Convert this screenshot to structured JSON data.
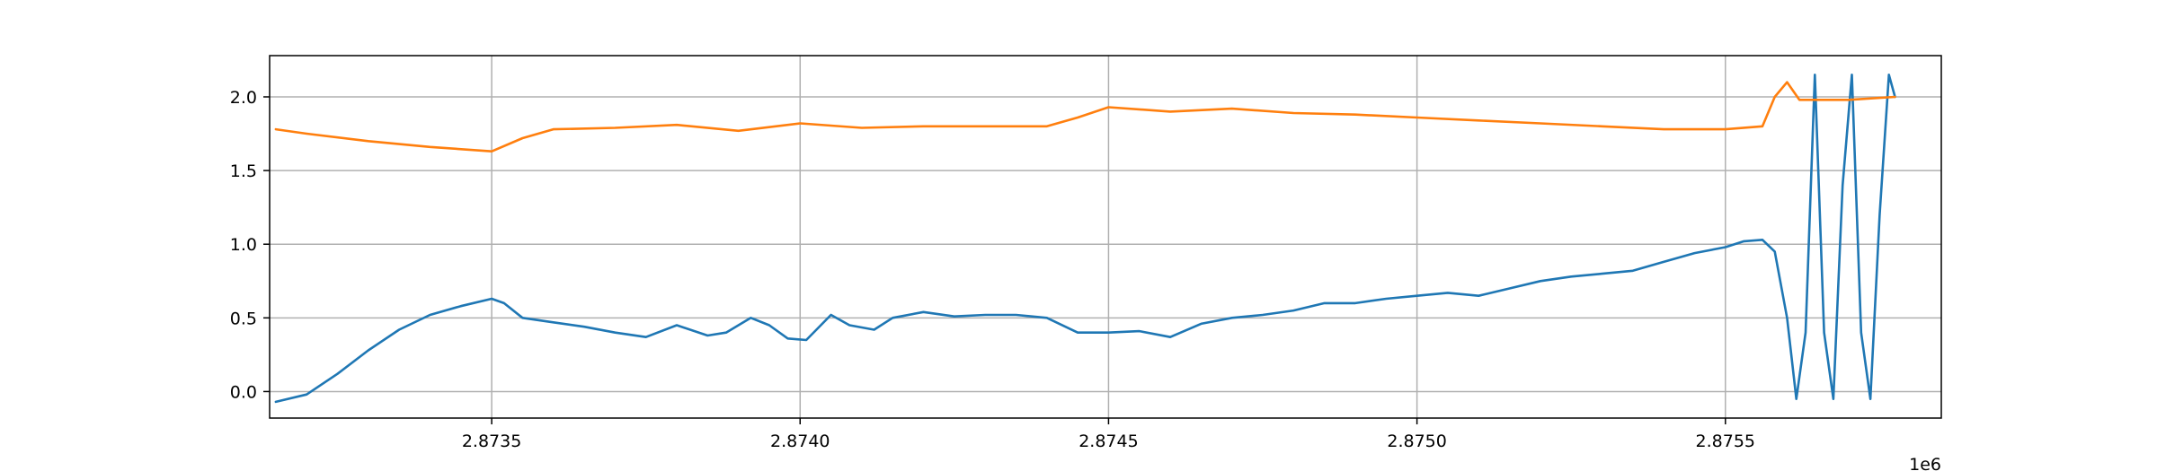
{
  "chart_data": {
    "type": "line",
    "title": "",
    "xlabel": "",
    "ylabel": "",
    "x_offset_label": "1e6",
    "xlim": [
      2873140,
      2875850
    ],
    "ylim": [
      -0.18,
      2.28
    ],
    "grid": true,
    "x_ticks": [
      {
        "value": 2873500,
        "label": "2.8735"
      },
      {
        "value": 2874000,
        "label": "2.8740"
      },
      {
        "value": 2874500,
        "label": "2.8745"
      },
      {
        "value": 2875000,
        "label": "2.8750"
      },
      {
        "value": 2875500,
        "label": "2.8755"
      }
    ],
    "y_ticks": [
      {
        "value": 0.0,
        "label": "0.0"
      },
      {
        "value": 0.5,
        "label": "0.5"
      },
      {
        "value": 1.0,
        "label": "1.0"
      },
      {
        "value": 1.5,
        "label": "1.5"
      },
      {
        "value": 2.0,
        "label": "2.0"
      }
    ],
    "series": [
      {
        "color": "#1f77b4",
        "x": [
          2873150,
          2873200,
          2873250,
          2873300,
          2873350,
          2873400,
          2873450,
          2873500,
          2873520,
          2873550,
          2873600,
          2873650,
          2873700,
          2873750,
          2873800,
          2873850,
          2873880,
          2873920,
          2873950,
          2873980,
          2874010,
          2874050,
          2874080,
          2874120,
          2874150,
          2874200,
          2874250,
          2874300,
          2874350,
          2874400,
          2874450,
          2874500,
          2874550,
          2874600,
          2874650,
          2874700,
          2874750,
          2874800,
          2874850,
          2874900,
          2874950,
          2875000,
          2875050,
          2875100,
          2875150,
          2875200,
          2875250,
          2875300,
          2875350,
          2875400,
          2875450,
          2875500,
          2875530,
          2875560,
          2875580,
          2875600,
          2875615,
          2875630,
          2875645,
          2875660,
          2875675,
          2875690,
          2875705,
          2875720,
          2875735,
          2875750,
          2875765,
          2875775
        ],
        "y": [
          -0.07,
          -0.02,
          0.12,
          0.28,
          0.42,
          0.52,
          0.58,
          0.63,
          0.6,
          0.5,
          0.47,
          0.44,
          0.4,
          0.37,
          0.45,
          0.38,
          0.4,
          0.5,
          0.45,
          0.36,
          0.35,
          0.52,
          0.45,
          0.42,
          0.5,
          0.54,
          0.51,
          0.52,
          0.52,
          0.5,
          0.4,
          0.4,
          0.41,
          0.37,
          0.46,
          0.5,
          0.52,
          0.55,
          0.6,
          0.6,
          0.63,
          0.65,
          0.67,
          0.65,
          0.7,
          0.75,
          0.78,
          0.8,
          0.82,
          0.88,
          0.94,
          0.98,
          1.02,
          1.03,
          0.95,
          0.5,
          -0.05,
          0.4,
          2.15,
          0.4,
          -0.05,
          1.4,
          2.15,
          0.4,
          -0.05,
          1.2,
          2.15,
          2.0
        ]
      },
      {
        "color": "#ff7f0e",
        "x": [
          2873150,
          2873200,
          2873300,
          2873400,
          2873500,
          2873550,
          2873600,
          2873700,
          2873800,
          2873900,
          2874000,
          2874100,
          2874200,
          2874300,
          2874400,
          2874450,
          2874500,
          2874600,
          2874700,
          2874800,
          2874900,
          2875000,
          2875100,
          2875200,
          2875300,
          2875400,
          2875500,
          2875560,
          2875580,
          2875600,
          2875620,
          2875700,
          2875775
        ],
        "y": [
          1.78,
          1.75,
          1.7,
          1.66,
          1.63,
          1.72,
          1.78,
          1.79,
          1.81,
          1.77,
          1.82,
          1.79,
          1.8,
          1.8,
          1.8,
          1.86,
          1.93,
          1.9,
          1.92,
          1.89,
          1.88,
          1.86,
          1.84,
          1.82,
          1.8,
          1.78,
          1.78,
          1.8,
          2.0,
          2.1,
          1.98,
          1.98,
          2.0
        ]
      }
    ]
  }
}
